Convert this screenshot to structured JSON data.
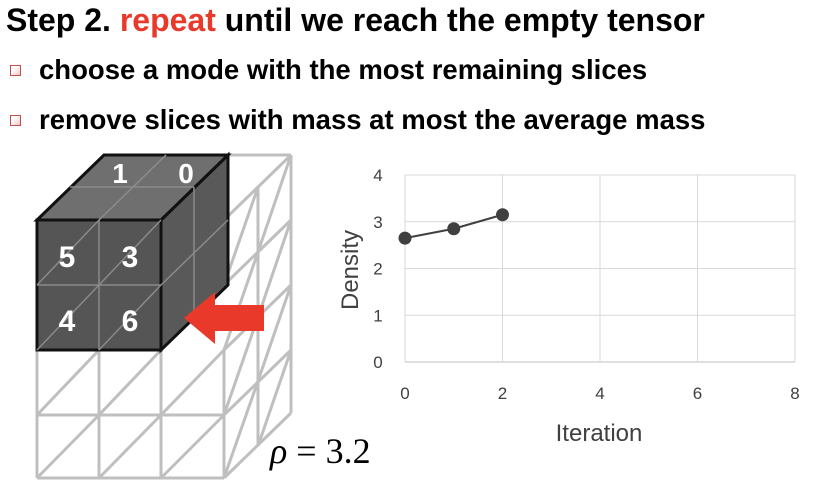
{
  "title": {
    "step": "Step 2.",
    "highlight": "repeat",
    "rest": "until we reach the empty tensor"
  },
  "bullets": [
    "choose a mode with the most remaining slices",
    "remove slices with mass at most the average mass"
  ],
  "cube": {
    "top_values": [
      "1",
      "0"
    ],
    "front_values": [
      [
        "5",
        "3"
      ],
      [
        "4",
        "6"
      ]
    ]
  },
  "chart_data": {
    "type": "line",
    "x": [
      0,
      1,
      2
    ],
    "y": [
      2.65,
      2.85,
      3.15
    ],
    "xlabel": "Iteration",
    "ylabel": "Density",
    "xlim": [
      0,
      8
    ],
    "ylim": [
      0,
      4
    ],
    "xticks": [
      "0",
      "2",
      "4",
      "6",
      "8"
    ],
    "yticks": [
      "0",
      "1",
      "2",
      "3",
      "4"
    ],
    "grid": true,
    "colors": {
      "line": "#404040",
      "marker": "#404040",
      "grid": "#d9d9d9"
    }
  },
  "density_label": {
    "symbol": "ρ",
    "equals": "=",
    "value": "3.2"
  },
  "colors": {
    "accent": "#e8392b",
    "cube_dark": "#555555",
    "grid_gray": "#bfbfbf"
  }
}
